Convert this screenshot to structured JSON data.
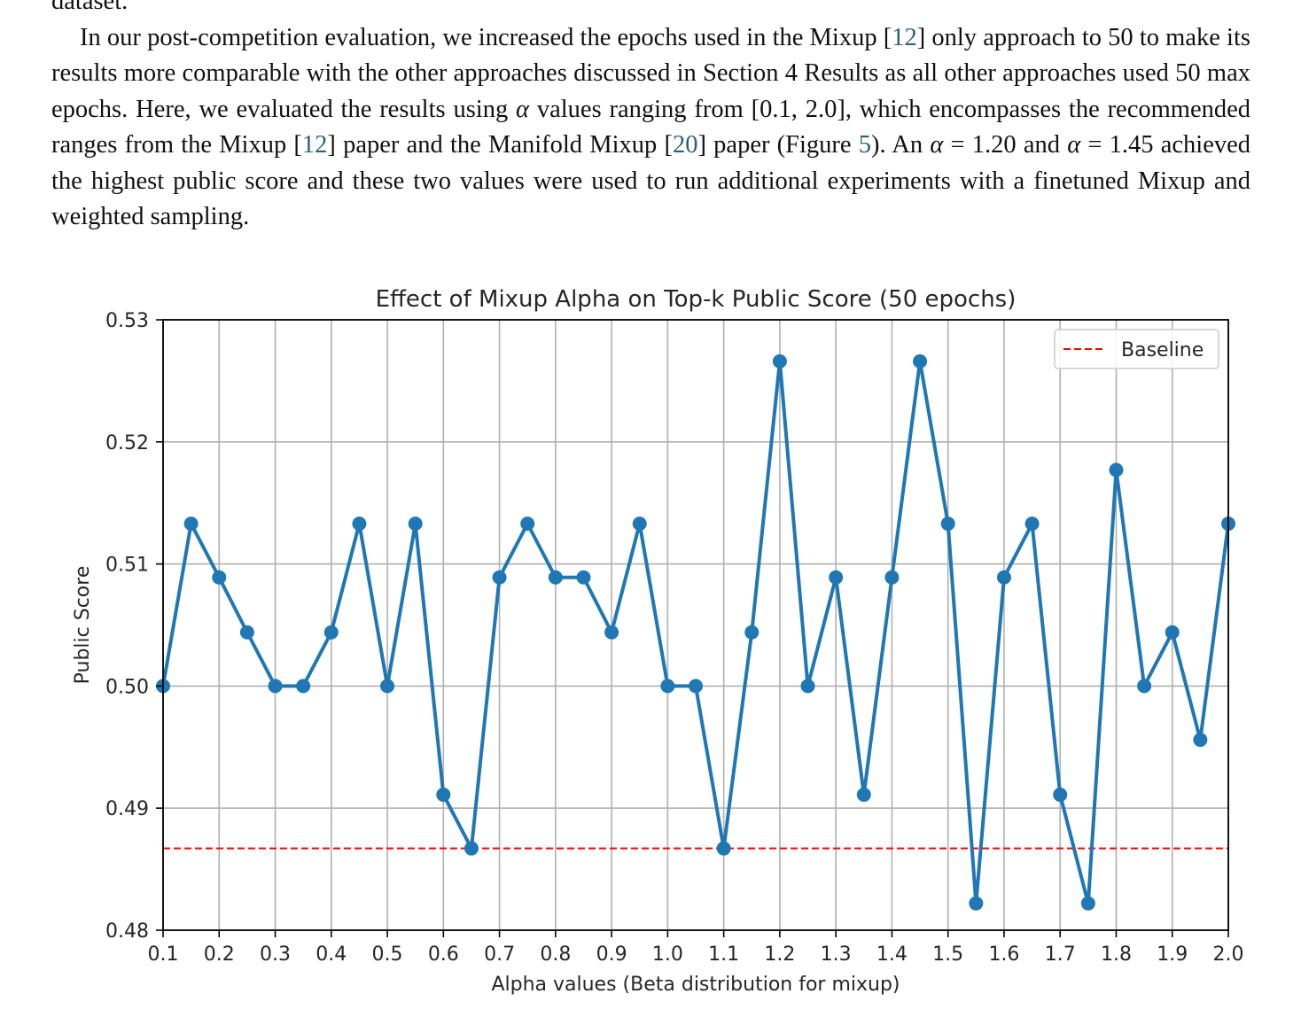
{
  "document": {
    "top_line": "dataset.",
    "paragraph": [
      {
        "t": "In our post-competition evaluation, we increased the epochs used in the Mixup ["
      },
      {
        "t": "12",
        "ref": true
      },
      {
        "t": "] only approach to 50 to make its results more comparable with the other approaches discussed in Section 4 Results as all other approaches used 50 max epochs. Here, we evaluated the results using "
      },
      {
        "t": "α",
        "math": true
      },
      {
        "t": " values ranging from [0.1, 2.0], which encompasses the recommended ranges from the Mixup ["
      },
      {
        "t": "12",
        "ref": true
      },
      {
        "t": "] paper and the Manifold Mixup ["
      },
      {
        "t": "20",
        "ref": true
      },
      {
        "t": "] paper (Figure "
      },
      {
        "t": "5",
        "ref": true
      },
      {
        "t": "). An "
      },
      {
        "t": "α",
        "math": true
      },
      {
        "t": " = 1.20 and "
      },
      {
        "t": "α",
        "math": true
      },
      {
        "t": " = 1.45 achieved the highest public score and these two values were used to run additional experiments with a finetuned Mixup and weighted sampling."
      }
    ]
  },
  "chart_data": {
    "type": "line",
    "title": "Effect of Mixup Alpha on Top-k Public Score (50 epochs)",
    "xlabel": "Alpha values (Beta distribution for mixup)",
    "ylabel": "Public Score",
    "xlim": [
      0.1,
      2.0
    ],
    "ylim": [
      0.48,
      0.53
    ],
    "xticks": [
      "0.1",
      "0.2",
      "0.3",
      "0.4",
      "0.5",
      "0.6",
      "0.7",
      "0.8",
      "0.9",
      "1.0",
      "1.1",
      "1.2",
      "1.3",
      "1.4",
      "1.5",
      "1.6",
      "1.7",
      "1.8",
      "1.9",
      "2.0"
    ],
    "yticks": [
      "0.48",
      "0.49",
      "0.50",
      "0.51",
      "0.52",
      "0.53"
    ],
    "grid": true,
    "legend_position": "top-right",
    "x": [
      0.1,
      0.15,
      0.2,
      0.25,
      0.3,
      0.35,
      0.4,
      0.45,
      0.5,
      0.55,
      0.6,
      0.65,
      0.7,
      0.75,
      0.8,
      0.85,
      0.9,
      0.95,
      1.0,
      1.05,
      1.1,
      1.15,
      1.2,
      1.25,
      1.3,
      1.35,
      1.4,
      1.45,
      1.5,
      1.55,
      1.6,
      1.65,
      1.7,
      1.75,
      1.8,
      1.85,
      1.9,
      1.95,
      2.0
    ],
    "series": [
      {
        "color": "#1f77b4",
        "values": [
          0.5,
          0.5133,
          0.5089,
          0.5044,
          0.5,
          0.5,
          0.5044,
          0.5133,
          0.5,
          0.5133,
          0.4911,
          0.4867,
          0.5089,
          0.5133,
          0.5089,
          0.5089,
          0.5044,
          0.5133,
          0.5,
          0.5,
          0.4867,
          0.5044,
          0.5266,
          0.5,
          0.5089,
          0.4911,
          0.5089,
          0.5266,
          0.5133,
          0.4822,
          0.5089,
          0.5133,
          0.4911,
          0.4822,
          0.5177,
          0.5,
          0.5044,
          0.4956,
          0.5133
        ]
      }
    ],
    "baseline": {
      "name": "Baseline",
      "value": 0.4867,
      "color": "#ff0000"
    }
  }
}
